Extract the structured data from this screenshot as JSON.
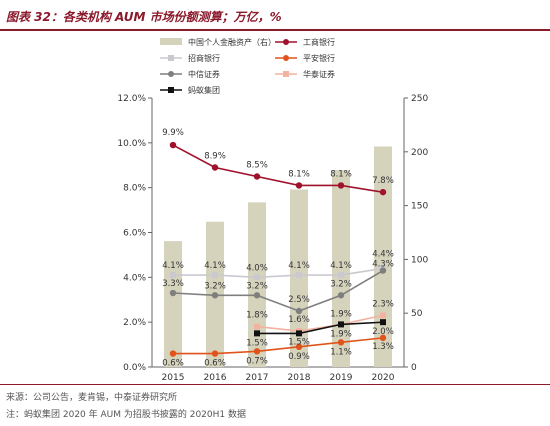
{
  "header": {
    "title": "图表 32：各类机构 AUM 市场份额测算；万亿，%"
  },
  "footer": {
    "source": "来源：公司公告，麦肯锡，中泰证券研究所",
    "note": "注：蚂蚁集团 2020 年 AUM 为招股书披露的 2020H1 数据"
  },
  "chart_data": {
    "type": "bar+line",
    "categories": [
      "2015",
      "2016",
      "2017",
      "2018",
      "2019",
      "2020"
    ],
    "left_axis": {
      "min": 0,
      "max": 12,
      "step": 2,
      "ticks": [
        "0.0%",
        "2.0%",
        "4.0%",
        "6.0%",
        "8.0%",
        "10.0%",
        "12.0%"
      ]
    },
    "right_axis": {
      "min": 0,
      "max": 250,
      "step": 50,
      "ticks": [
        "0",
        "50",
        "100",
        "150",
        "200",
        "250"
      ]
    },
    "bars": {
      "name": "中国个人金融资产（右）",
      "color": "#d6d3bd",
      "values": [
        117,
        135,
        153,
        165,
        183,
        205
      ]
    },
    "series": [
      {
        "name": "工商银行",
        "color": "#a0112c",
        "marker": "circle",
        "values": [
          9.9,
          8.9,
          8.5,
          8.1,
          8.1,
          7.8
        ],
        "labels": [
          "9.9%",
          "8.9%",
          "8.5%",
          "8.1%",
          "8.1%",
          "7.8%"
        ]
      },
      {
        "name": "招商银行",
        "color": "#c9c9cf",
        "marker": "square",
        "values": [
          4.1,
          4.1,
          4.0,
          4.1,
          4.1,
          4.4
        ],
        "labels": [
          "4.1%",
          "4.1%",
          "4.0%",
          "4.1%",
          "4.1%",
          "4.4%"
        ]
      },
      {
        "name": "平安银行",
        "color": "#e0541b",
        "marker": "circle",
        "values": [
          0.6,
          0.6,
          0.7,
          0.9,
          1.1,
          1.3
        ],
        "labels": [
          "0.6%",
          "0.6%",
          "0.7%",
          "0.9%",
          "1.1%",
          "1.3%"
        ]
      },
      {
        "name": "中信证券",
        "color": "#7f7f7f",
        "marker": "circle",
        "values": [
          3.3,
          3.2,
          3.2,
          2.5,
          3.2,
          4.3
        ],
        "labels": [
          "3.3%",
          "3.2%",
          "3.2%",
          "2.5%",
          "3.2%",
          "4.3%"
        ]
      },
      {
        "name": "华泰证券",
        "color": "#f2b29f",
        "marker": "square",
        "values": [
          null,
          null,
          1.8,
          1.6,
          1.9,
          2.3
        ],
        "labels": [
          "",
          "",
          "1.8%",
          "1.6%",
          "1.9%",
          "2.3%"
        ]
      },
      {
        "name": "蚂蚁集团",
        "color": "#111111",
        "marker": "square",
        "values": [
          null,
          null,
          1.5,
          1.5,
          1.9,
          2.0
        ],
        "labels": [
          "",
          "",
          "1.5%",
          "1.5%",
          "1.9%",
          "2.0%"
        ]
      }
    ]
  }
}
